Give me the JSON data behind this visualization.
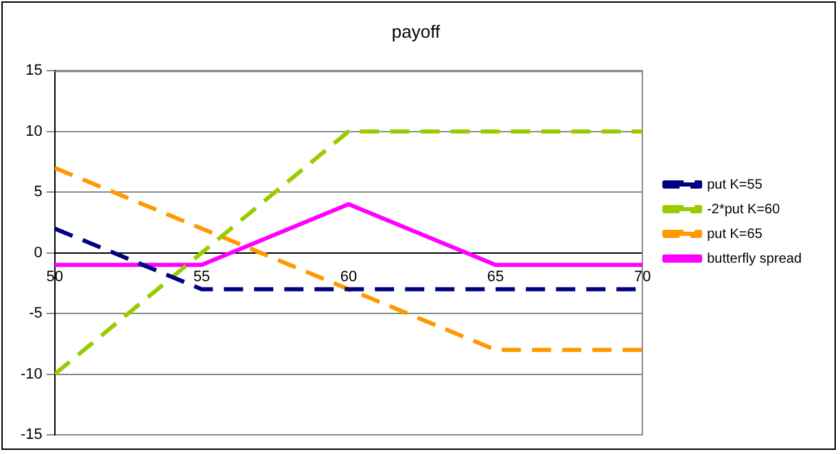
{
  "chart_data": {
    "type": "line",
    "title": "payoff",
    "x": [
      50,
      55,
      60,
      65,
      70
    ],
    "series": [
      {
        "name": "put K=55",
        "color": "#000080",
        "values": [
          2,
          -3,
          -3,
          -3,
          -3
        ],
        "line_style": "dashed"
      },
      {
        "name": "-2*put K=60",
        "color": "#99cc00",
        "values": [
          -10,
          0,
          10,
          10,
          10
        ],
        "line_style": "dashed"
      },
      {
        "name": "put K=65",
        "color": "#ff9900",
        "values": [
          7,
          2,
          -3,
          -8,
          -8
        ],
        "line_style": "dashed"
      },
      {
        "name": "butterfly spread",
        "color": "#ff00ff",
        "values": [
          -1,
          -1,
          4,
          -1,
          -1
        ],
        "line_style": "solid"
      }
    ],
    "xlim": [
      50,
      70
    ],
    "xticks": [
      50,
      55,
      60,
      65,
      70
    ],
    "ylim": [
      -15,
      15
    ],
    "yticks": [
      -15,
      -10,
      -5,
      0,
      5,
      10,
      15
    ],
    "grid": "y",
    "legend": "right",
    "marker": "none"
  }
}
